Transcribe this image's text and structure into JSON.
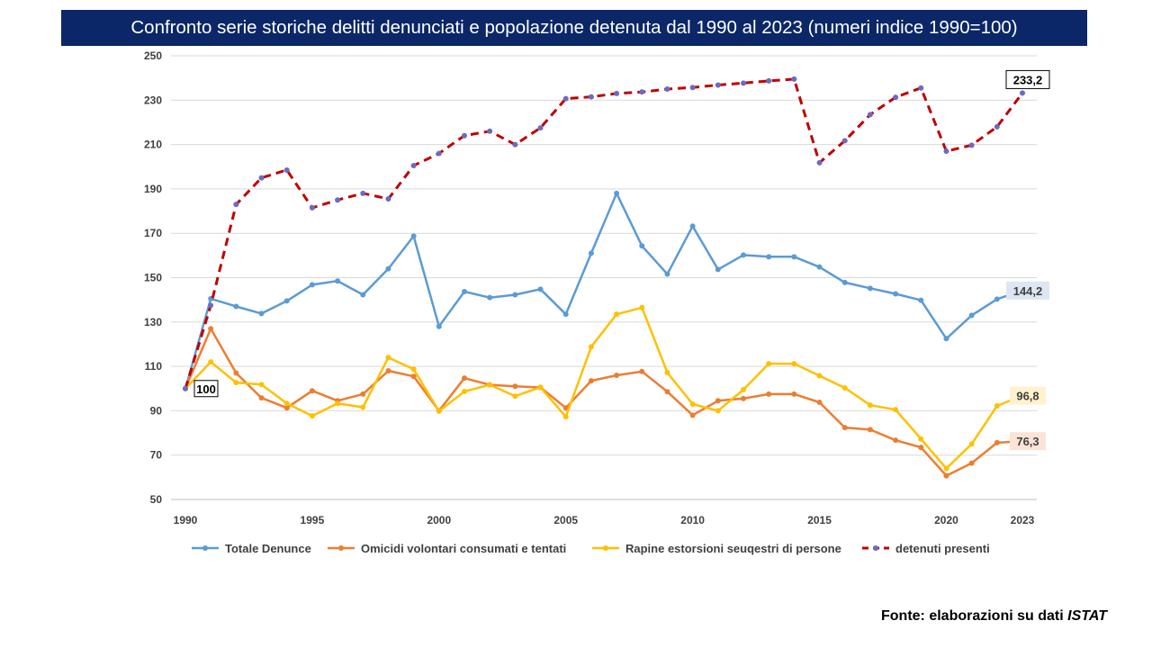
{
  "source": {
    "text": "Fonte: elaborazioni su dati ",
    "emphasis": "ISTAT"
  },
  "chart_data": {
    "type": "line",
    "title": "Confronto serie storiche delitti denunciati e popolazione detenuta dal 1990 al 2023 (numeri indice 1990=100)",
    "xlabel": "",
    "ylabel": "",
    "ylim": [
      50,
      250
    ],
    "yticks": [
      50,
      70,
      90,
      110,
      130,
      150,
      170,
      190,
      210,
      230,
      250
    ],
    "xticks": [
      1990,
      1995,
      2000,
      2005,
      2010,
      2015,
      2020,
      2023
    ],
    "grid": true,
    "legend_position": "bottom",
    "x": [
      1990,
      1991,
      1992,
      1993,
      1994,
      1995,
      1996,
      1997,
      1998,
      1999,
      2000,
      2001,
      2002,
      2003,
      2004,
      2005,
      2006,
      2007,
      2008,
      2009,
      2010,
      2011,
      2012,
      2013,
      2014,
      2015,
      2016,
      2017,
      2018,
      2019,
      2020,
      2021,
      2022,
      2023
    ],
    "series": [
      {
        "name": "Totale Denunce",
        "color": "#5b9bd5",
        "style": "solid",
        "values": [
          100,
          140.5,
          137,
          133.8,
          139.5,
          146.8,
          148.5,
          142.3,
          154,
          168.7,
          128,
          143.7,
          141,
          142.3,
          144.8,
          133.5,
          161,
          188,
          164.3,
          151.6,
          173.2,
          153.7,
          160.2,
          159.4,
          159.4,
          154.8,
          147.8,
          145.2,
          142.7,
          139.8,
          122.5,
          133,
          140.3,
          144.2
        ],
        "end_label": "144,2",
        "end_label_bg": "#dde7f3",
        "end_label_color": "#404040"
      },
      {
        "name": "Omicidi volontari consumati e tentati",
        "color": "#ed7d31",
        "style": "solid",
        "values": [
          100,
          127,
          107,
          95.8,
          91.3,
          99,
          94.5,
          97.5,
          108,
          105.5,
          90,
          104.7,
          101.7,
          101,
          100.5,
          91.3,
          103.5,
          106,
          107.7,
          98.6,
          88,
          94.5,
          95.5,
          97.5,
          97.5,
          93.8,
          82.4,
          81.5,
          76.7,
          73.5,
          60.7,
          66.4,
          75.6,
          76.3
        ],
        "end_label": "76,3",
        "end_label_bg": "#fbe3d6",
        "end_label_color": "#404040"
      },
      {
        "name": "Rapine estorsioni seuqestri di persone",
        "color": "#ffc000",
        "style": "solid",
        "values": [
          100,
          112,
          102.7,
          101.8,
          93.3,
          87.7,
          93.3,
          91.6,
          114,
          108.7,
          89.8,
          98.7,
          101.7,
          96.6,
          100.6,
          87.3,
          118.8,
          133.5,
          136.5,
          107.2,
          93,
          90,
          99.5,
          111.2,
          111.2,
          105.8,
          100.3,
          92.5,
          90.5,
          77.3,
          64,
          75,
          92.2,
          96.8
        ],
        "end_label": "96,8",
        "end_label_bg": "#fff2cc",
        "end_label_color": "#404040"
      },
      {
        "name": "detenuti presenti",
        "color": "#c00000",
        "style": "dashed",
        "marker_color": "#6b6bc0",
        "values": [
          100,
          137.5,
          183,
          195,
          198.5,
          181.5,
          185,
          188,
          185.5,
          200.5,
          206,
          214,
          216,
          210,
          217.5,
          230.7,
          231.5,
          233,
          233.7,
          235,
          235.7,
          236.8,
          237.7,
          238.7,
          239.5,
          201.8,
          211.7,
          223.5,
          231.3,
          235.5,
          207,
          209.7,
          218,
          233.2
        ],
        "end_label": "233,2",
        "end_label_bg": "#ffffff",
        "end_label_color": "#000000"
      }
    ],
    "start_label": "100"
  }
}
